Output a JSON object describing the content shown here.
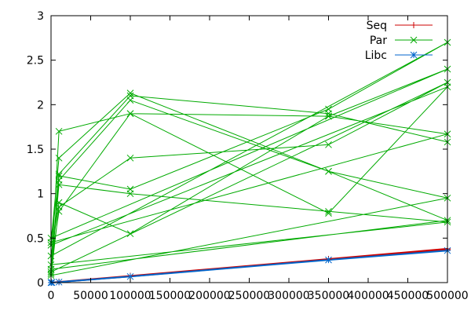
{
  "chart_data": {
    "type": "line",
    "title": "",
    "xlabel": "",
    "ylabel": "",
    "xlim": [
      0,
      500000
    ],
    "ylim": [
      0,
      3
    ],
    "x_ticks": [
      0,
      50000,
      100000,
      150000,
      200000,
      250000,
      300000,
      350000,
      400000,
      450000,
      500000
    ],
    "x_tick_labels": [
      "0",
      "50000",
      "100000",
      "150000",
      "200000",
      "250000",
      "300000",
      "350000",
      "400000",
      "450000",
      "500000"
    ],
    "y_ticks": [
      0,
      0.5,
      1,
      1.5,
      2,
      2.5,
      3
    ],
    "y_tick_labels": [
      "0",
      "0.5",
      "1",
      "1.5",
      "2",
      "2.5",
      "3"
    ],
    "grid": false,
    "legend_position": "top-right",
    "series": [
      {
        "name": "Seq",
        "color": "#cc0000",
        "marker": "plus",
        "points": [
          [
            0,
            0.0
          ],
          [
            1000,
            0.001
          ],
          [
            10000,
            0.007
          ],
          [
            100000,
            0.07
          ],
          [
            350000,
            0.26
          ],
          [
            500000,
            0.37
          ],
          [
            0,
            0.0
          ],
          [
            10000,
            0.008
          ],
          [
            100000,
            0.075
          ],
          [
            350000,
            0.265
          ],
          [
            500000,
            0.38
          ]
        ]
      },
      {
        "name": "Par",
        "color": "#00aa00",
        "marker": "x",
        "points": [
          [
            0,
            0.1
          ],
          [
            10000,
            1.7
          ],
          [
            100000,
            1.9
          ],
          [
            350000,
            1.87
          ],
          [
            500000,
            1.67
          ],
          [
            0,
            0.45
          ],
          [
            10000,
            1.4
          ],
          [
            100000,
            2.13
          ],
          [
            350000,
            1.25
          ],
          [
            500000,
            0.7
          ],
          [
            0,
            0.15
          ],
          [
            10000,
            1.2
          ],
          [
            100000,
            1.05
          ],
          [
            350000,
            1.95
          ],
          [
            500000,
            2.7
          ],
          [
            0,
            0.3
          ],
          [
            10000,
            0.9
          ],
          [
            100000,
            0.55
          ],
          [
            350000,
            1.87
          ],
          [
            500000,
            2.4
          ],
          [
            0,
            0.5
          ],
          [
            10000,
            1.15
          ],
          [
            100000,
            2.05
          ],
          [
            350000,
            1.25
          ],
          [
            500000,
            0.95
          ],
          [
            0,
            0.08
          ],
          [
            10000,
            0.85
          ],
          [
            100000,
            1.4
          ],
          [
            350000,
            1.55
          ],
          [
            500000,
            2.25
          ],
          [
            0,
            0.12
          ],
          [
            10000,
            1.1
          ],
          [
            100000,
            1.0
          ],
          [
            350000,
            0.8
          ],
          [
            500000,
            0.68
          ],
          [
            0,
            0.2
          ],
          [
            10000,
            0.8
          ],
          [
            100000,
            1.9
          ],
          [
            350000,
            0.78
          ],
          [
            500000,
            2.2
          ],
          [
            0,
            0.42
          ],
          [
            10000,
            1.22
          ],
          [
            100000,
            2.1
          ],
          [
            350000,
            1.9
          ],
          [
            500000,
            1.58
          ]
        ]
      },
      {
        "name": "Libc",
        "color": "#0066cc",
        "marker": "star",
        "points": [
          [
            0,
            0.0
          ],
          [
            1000,
            0.001
          ],
          [
            10000,
            0.006
          ],
          [
            100000,
            0.068
          ],
          [
            350000,
            0.255
          ],
          [
            500000,
            0.36
          ]
        ]
      }
    ]
  }
}
